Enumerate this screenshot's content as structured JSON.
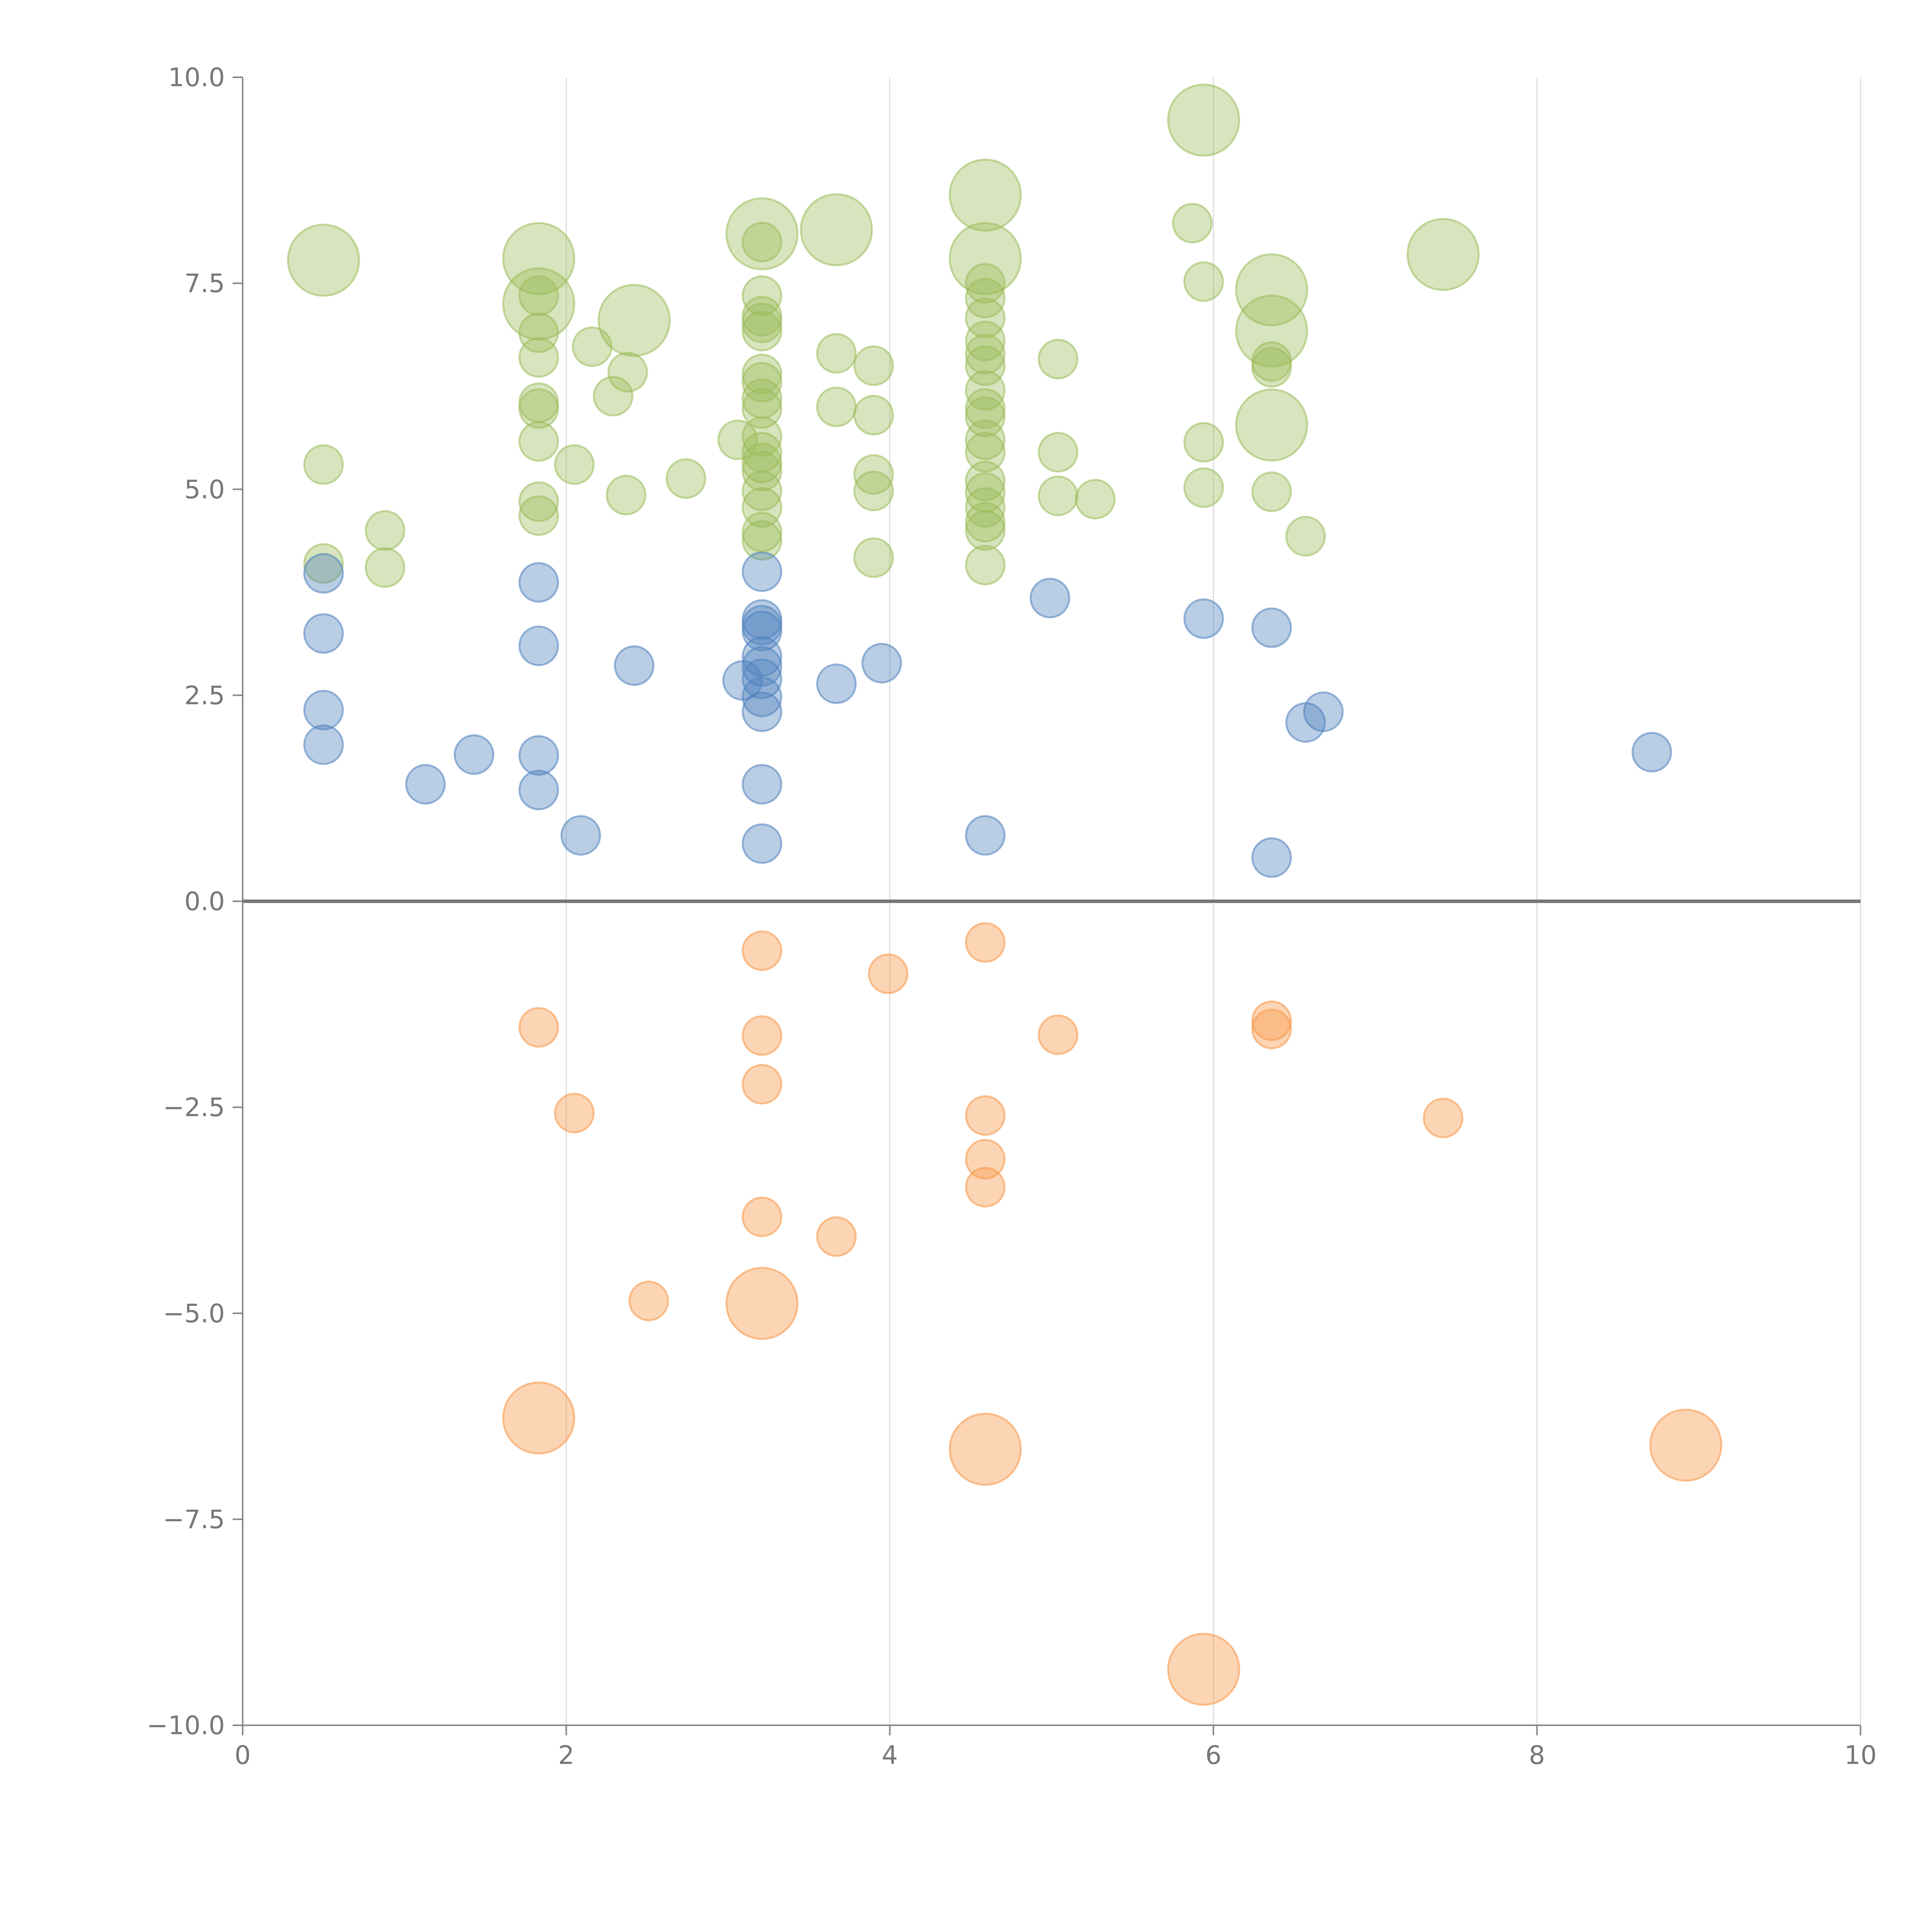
{
  "chart_data": {
    "type": "scatter",
    "title": "",
    "xlabel": "",
    "ylabel": "",
    "xlim": [
      0,
      10
    ],
    "ylim": [
      -10,
      10
    ],
    "x_ticks": [
      "0",
      "2",
      "4",
      "6",
      "8",
      "10"
    ],
    "y_ticks": [
      "10.0",
      "7.5",
      "5.0",
      "2.5",
      "0.0",
      "−2.5",
      "−5.0",
      "−7.5",
      "−10.0"
    ],
    "grid": "vertical lines at x ticks",
    "legend": "none",
    "zero_line": 0,
    "series": [
      {
        "name": "green",
        "color": "#9bbb59",
        "points": [
          [
            0.5,
            7.78,
            "L"
          ],
          [
            0.5,
            5.3,
            "S"
          ],
          [
            0.5,
            4.1,
            "S"
          ],
          [
            0.88,
            4.5,
            "S"
          ],
          [
            0.88,
            4.05,
            "S"
          ],
          [
            1.83,
            7.8,
            "L"
          ],
          [
            1.83,
            7.25,
            "L"
          ],
          [
            1.83,
            7.35,
            "S"
          ],
          [
            1.83,
            6.9,
            "S"
          ],
          [
            1.83,
            6.6,
            "S"
          ],
          [
            1.83,
            6.05,
            "S"
          ],
          [
            1.83,
            5.98,
            "S"
          ],
          [
            1.83,
            5.58,
            "S"
          ],
          [
            1.83,
            4.85,
            "S"
          ],
          [
            1.83,
            4.68,
            "S"
          ],
          [
            2.05,
            5.3,
            "S"
          ],
          [
            2.16,
            6.73,
            "S"
          ],
          [
            2.29,
            6.13,
            "S"
          ],
          [
            2.38,
            6.42,
            "S"
          ],
          [
            2.37,
            4.93,
            "S"
          ],
          [
            2.42,
            7.05,
            "L"
          ],
          [
            2.74,
            5.13,
            "S"
          ],
          [
            3.06,
            5.6,
            "S"
          ],
          [
            3.21,
            8.1,
            "L"
          ],
          [
            3.21,
            8.0,
            "S"
          ],
          [
            3.21,
            7.35,
            "S"
          ],
          [
            3.21,
            7.1,
            "S"
          ],
          [
            3.21,
            7.02,
            "S"
          ],
          [
            3.21,
            6.92,
            "S"
          ],
          [
            3.21,
            6.4,
            "S"
          ],
          [
            3.21,
            6.3,
            "S"
          ],
          [
            3.21,
            6.1,
            "S"
          ],
          [
            3.21,
            5.98,
            "S"
          ],
          [
            3.21,
            5.64,
            "S"
          ],
          [
            3.21,
            5.45,
            "S"
          ],
          [
            3.21,
            5.32,
            "S"
          ],
          [
            3.21,
            5.22,
            "S"
          ],
          [
            3.21,
            4.98,
            "S"
          ],
          [
            3.21,
            4.78,
            "S"
          ],
          [
            3.21,
            4.48,
            "S"
          ],
          [
            3.21,
            4.38,
            "S"
          ],
          [
            3.67,
            8.15,
            "L"
          ],
          [
            3.67,
            6.65,
            "S"
          ],
          [
            3.67,
            6.0,
            "S"
          ],
          [
            3.9,
            6.5,
            "S"
          ],
          [
            3.9,
            5.9,
            "S"
          ],
          [
            3.9,
            5.18,
            "S"
          ],
          [
            3.9,
            4.98,
            "S"
          ],
          [
            3.9,
            4.17,
            "S"
          ],
          [
            4.59,
            8.57,
            "L"
          ],
          [
            4.59,
            7.8,
            "L"
          ],
          [
            4.59,
            7.5,
            "S"
          ],
          [
            4.59,
            7.32,
            "S"
          ],
          [
            4.59,
            7.08,
            "S"
          ],
          [
            4.59,
            6.8,
            "S"
          ],
          [
            4.59,
            6.64,
            "S"
          ],
          [
            4.59,
            6.5,
            "S"
          ],
          [
            4.59,
            6.2,
            "S"
          ],
          [
            4.59,
            5.98,
            "S"
          ],
          [
            4.59,
            5.88,
            "S"
          ],
          [
            4.59,
            5.6,
            "S"
          ],
          [
            4.59,
            5.45,
            "S"
          ],
          [
            4.59,
            5.1,
            "S"
          ],
          [
            4.59,
            4.96,
            "S"
          ],
          [
            4.59,
            4.78,
            "S"
          ],
          [
            4.59,
            4.6,
            "S"
          ],
          [
            4.59,
            4.5,
            "S"
          ],
          [
            4.59,
            4.08,
            "S"
          ],
          [
            5.04,
            6.58,
            "S"
          ],
          [
            5.04,
            5.45,
            "S"
          ],
          [
            5.04,
            4.92,
            "S"
          ],
          [
            5.27,
            4.88,
            "S"
          ],
          [
            5.94,
            9.48,
            "L"
          ],
          [
            5.87,
            8.23,
            "S"
          ],
          [
            5.94,
            7.52,
            "S"
          ],
          [
            5.94,
            5.57,
            "S"
          ],
          [
            5.94,
            5.02,
            "S"
          ],
          [
            6.36,
            7.42,
            "L"
          ],
          [
            6.36,
            6.92,
            "L"
          ],
          [
            6.36,
            5.78,
            "L"
          ],
          [
            6.36,
            6.55,
            "S"
          ],
          [
            6.36,
            6.48,
            "S"
          ],
          [
            6.36,
            4.97,
            "S"
          ],
          [
            6.57,
            4.43,
            "S"
          ],
          [
            7.42,
            7.85,
            "L"
          ]
        ]
      },
      {
        "name": "blue",
        "color": "#4f81bd",
        "points": [
          [
            0.5,
            3.98,
            "S"
          ],
          [
            0.5,
            3.25,
            "S"
          ],
          [
            0.5,
            2.32,
            "S"
          ],
          [
            0.5,
            1.9,
            "S"
          ],
          [
            1.13,
            1.42,
            "S"
          ],
          [
            1.43,
            1.78,
            "S"
          ],
          [
            1.83,
            3.87,
            "S"
          ],
          [
            1.83,
            3.1,
            "S"
          ],
          [
            1.83,
            1.77,
            "S"
          ],
          [
            1.83,
            1.35,
            "S"
          ],
          [
            2.09,
            0.8,
            "S"
          ],
          [
            2.42,
            2.86,
            "S"
          ],
          [
            3.21,
            4.0,
            "S"
          ],
          [
            3.21,
            3.42,
            "S"
          ],
          [
            3.21,
            3.35,
            "S"
          ],
          [
            3.21,
            3.28,
            "S"
          ],
          [
            3.21,
            2.97,
            "S"
          ],
          [
            3.21,
            2.85,
            "S"
          ],
          [
            3.21,
            2.7,
            "S"
          ],
          [
            3.21,
            2.48,
            "S"
          ],
          [
            3.21,
            2.3,
            "S"
          ],
          [
            3.21,
            1.42,
            "S"
          ],
          [
            3.21,
            0.7,
            "S"
          ],
          [
            3.09,
            2.68,
            "S"
          ],
          [
            3.67,
            2.64,
            "S"
          ],
          [
            3.95,
            2.89,
            "S"
          ],
          [
            4.59,
            0.8,
            "S"
          ],
          [
            4.99,
            3.68,
            "S"
          ],
          [
            5.94,
            3.43,
            "S"
          ],
          [
            6.36,
            3.32,
            "S"
          ],
          [
            6.36,
            0.53,
            "S"
          ],
          [
            6.57,
            2.17,
            "S"
          ],
          [
            6.68,
            2.3,
            "S"
          ],
          [
            8.71,
            1.81,
            "S"
          ]
        ]
      },
      {
        "name": "orange",
        "color": "#f79646",
        "points": [
          [
            1.83,
            -1.53,
            "S"
          ],
          [
            1.83,
            -6.27,
            "L"
          ],
          [
            2.05,
            -2.57,
            "S"
          ],
          [
            2.51,
            -4.85,
            "S"
          ],
          [
            3.21,
            -0.6,
            "S"
          ],
          [
            3.21,
            -1.63,
            "S"
          ],
          [
            3.21,
            -2.22,
            "S"
          ],
          [
            3.21,
            -3.83,
            "S"
          ],
          [
            3.21,
            -4.88,
            "L"
          ],
          [
            3.67,
            -4.07,
            "S"
          ],
          [
            3.99,
            -0.88,
            "S"
          ],
          [
            4.59,
            -0.5,
            "S"
          ],
          [
            4.59,
            -2.6,
            "S"
          ],
          [
            4.59,
            -3.13,
            "S"
          ],
          [
            4.59,
            -3.47,
            "S"
          ],
          [
            4.59,
            -6.65,
            "L"
          ],
          [
            5.04,
            -1.62,
            "S"
          ],
          [
            5.94,
            -9.32,
            "L"
          ],
          [
            6.36,
            -1.45,
            "S"
          ],
          [
            6.36,
            -1.55,
            "S"
          ],
          [
            7.42,
            -2.63,
            "S"
          ],
          [
            8.92,
            -6.6,
            "L"
          ]
        ]
      }
    ]
  }
}
